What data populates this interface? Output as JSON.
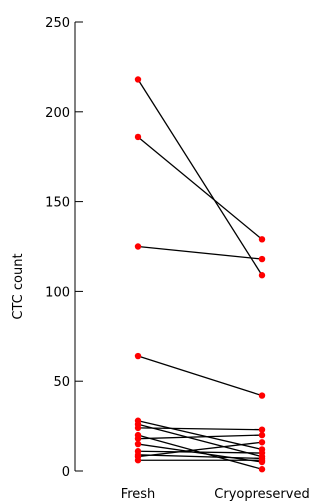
{
  "chart_data": {
    "type": "line",
    "categories": [
      "Fresh",
      "Cryopreserved"
    ],
    "ylabel": "CTC count",
    "xlabel": "",
    "title": "",
    "ylim": [
      0,
      250
    ],
    "yticks": [
      0,
      50,
      100,
      150,
      200,
      250
    ],
    "grid": false,
    "legend": "none",
    "line_color": "#000000",
    "marker_color": "#ff0000",
    "pairs": [
      {
        "fresh": 218,
        "cryo": 109
      },
      {
        "fresh": 186,
        "cryo": 129
      },
      {
        "fresh": 125,
        "cryo": 118
      },
      {
        "fresh": 64,
        "cryo": 42
      },
      {
        "fresh": 28,
        "cryo": 12
      },
      {
        "fresh": 26,
        "cryo": 8
      },
      {
        "fresh": 24,
        "cryo": 23
      },
      {
        "fresh": 20,
        "cryo": 1
      },
      {
        "fresh": 18,
        "cryo": 20
      },
      {
        "fresh": 15,
        "cryo": 5
      },
      {
        "fresh": 11,
        "cryo": 10
      },
      {
        "fresh": 9,
        "cryo": 7
      },
      {
        "fresh": 8,
        "cryo": 16
      },
      {
        "fresh": 6,
        "cryo": 6
      }
    ]
  }
}
